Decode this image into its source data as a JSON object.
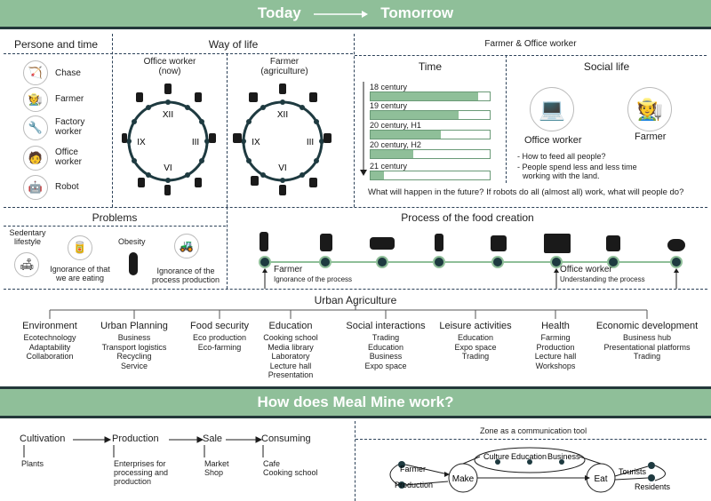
{
  "header": {
    "today": "Today",
    "tomorrow": "Tomorrow"
  },
  "persons": {
    "title": "Persone and time",
    "items": [
      "Chase",
      "Farmer",
      "Factory worker",
      "Office worker",
      "Robot"
    ]
  },
  "way": {
    "title": "Way of life",
    "office": "Office worker",
    "office_sub": "(now)",
    "farmer": "Farmer",
    "farmer_sub": "(agriculture)",
    "numerals": {
      "xii": "XII",
      "iii": "III",
      "vi": "VI",
      "ix": "IX"
    }
  },
  "fow": {
    "title": "Farmer & Office worker",
    "time_title": "Time",
    "social_title": "Social life",
    "centuries": [
      {
        "label": "18 century",
        "value": 0.9
      },
      {
        "label": "19 century",
        "value": 0.74
      },
      {
        "label": "20 century, H1",
        "value": 0.59
      },
      {
        "label": "20 century, H2",
        "value": 0.36
      },
      {
        "label": "21 century",
        "value": 0.11
      }
    ],
    "office_label": "Office worker",
    "farmer_label": "Farmer",
    "q1": "- How to feed all people?",
    "q2": "- People spend less and less time",
    "q2b": "working with the land.",
    "question": "What will happen in the future? If robots do all (almost all) work, what will people do?"
  },
  "problems": {
    "title": "Problems",
    "sedentary": "Sedentary",
    "sedentary2": "lifestyle",
    "obesity": "Obesity",
    "ignorance1": "Ignorance of that",
    "ignorance1b": "we are eating",
    "ignorance2": "Ignorance of the",
    "ignorance2b": "process production"
  },
  "process": {
    "title": "Process of the food creation",
    "farmer": "Farmer",
    "farmer_sub": "Ignorance of the process",
    "office": "Office worker",
    "office_sub": "Understanding the process"
  },
  "urban": {
    "title": "Urban Agriculture",
    "categories": [
      {
        "name": "Environment",
        "items": [
          "Ecotechnology",
          "Adaptability",
          "Collaboration"
        ]
      },
      {
        "name": "Urban Planning",
        "items": [
          "Business",
          "Transport logistics",
          "Recycling",
          "Service"
        ]
      },
      {
        "name": "Food security",
        "items": [
          "Eco production",
          "Eco-farming"
        ]
      },
      {
        "name": "Education",
        "items": [
          "Cooking school",
          "Media library",
          "Laboratory",
          "Lecture hall",
          "Presentation"
        ]
      },
      {
        "name": "Social interactions",
        "items": [
          "Trading",
          "Education",
          "Business",
          "Expo space"
        ]
      },
      {
        "name": "Leisure activities",
        "items": [
          "Education",
          "Expo space",
          "Trading"
        ]
      },
      {
        "name": "Health",
        "items": [
          "Farming",
          "Production",
          "Lecture hall",
          "Workshops"
        ]
      },
      {
        "name": "Economic development",
        "items": [
          "Business hub",
          "Presentational platforms",
          "Trading"
        ]
      }
    ]
  },
  "how": {
    "title": "How does Meal Mine work?",
    "steps": [
      {
        "name": "Cultivation",
        "items": [
          "Plants"
        ]
      },
      {
        "name": "Production",
        "items": [
          "Enterprises for",
          "processing and",
          "production"
        ]
      },
      {
        "name": "Sale",
        "items": [
          "Market",
          "Shop"
        ]
      },
      {
        "name": "Consuming",
        "items": [
          "Cafe",
          "Cooking school"
        ]
      }
    ],
    "zone": {
      "title": "Zone as a communication tool",
      "farmer": "Farmer",
      "production": "Production",
      "make": "Make",
      "culture": "Culture",
      "education": "Education",
      "business": "Business",
      "eat": "Eat",
      "tourists": "Tourists",
      "residents": "Residents"
    }
  }
}
